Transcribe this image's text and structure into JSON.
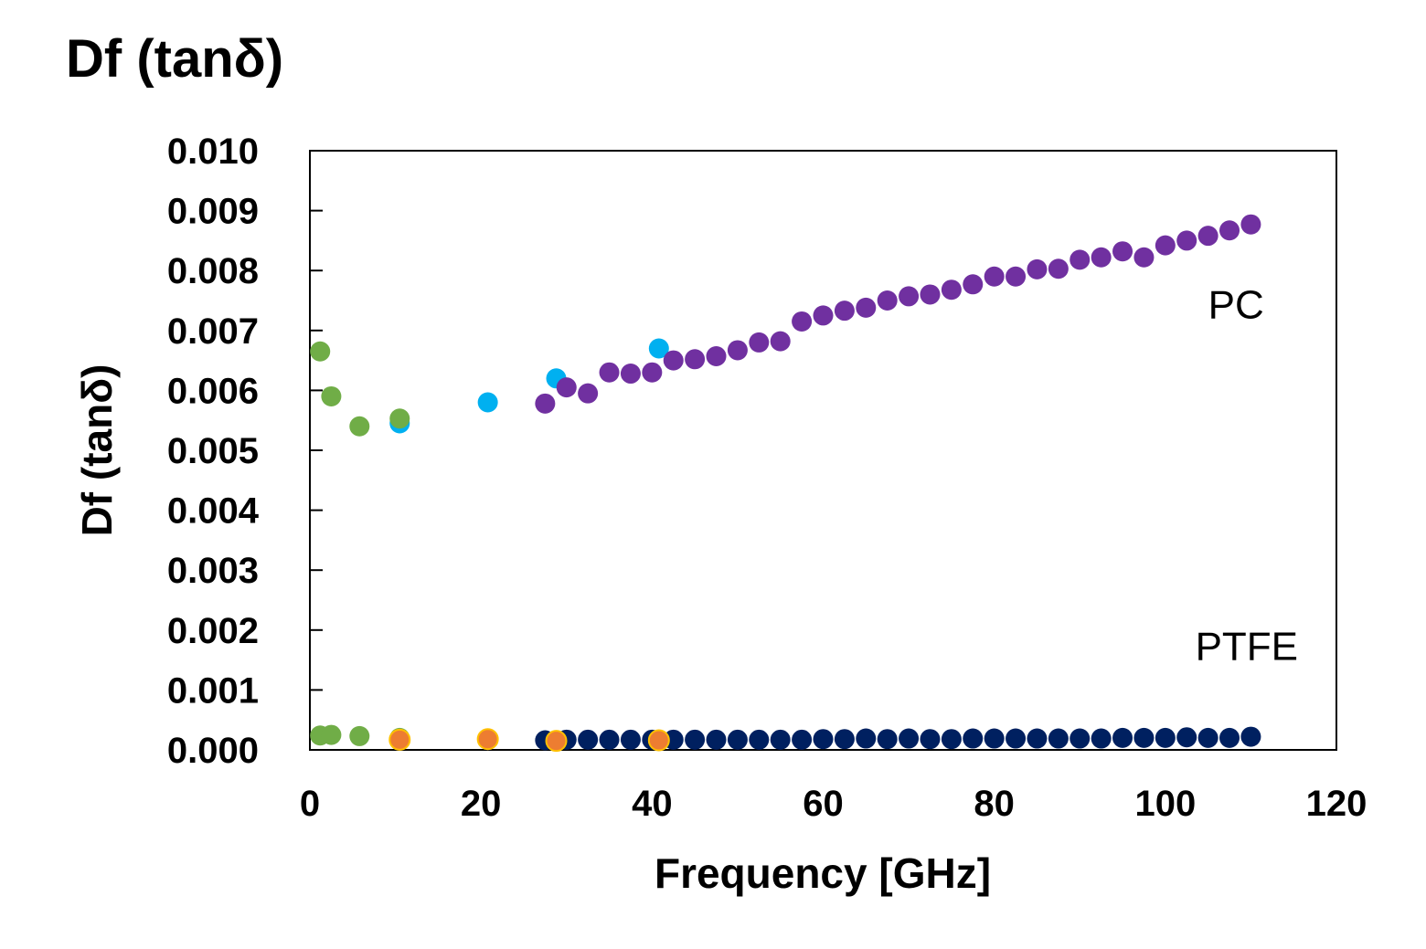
{
  "figure_title": "Df (tanδ)",
  "chart_data": {
    "type": "scatter",
    "title": "",
    "xlabel": "Frequency [GHz]",
    "ylabel": "Df (tanδ)",
    "xlim": [
      0,
      120
    ],
    "ylim": [
      0,
      0.01
    ],
    "xticks": [
      "0",
      "20",
      "40",
      "60",
      "80",
      "100",
      "120"
    ],
    "yticks": [
      "0.000",
      "0.001",
      "0.002",
      "0.003",
      "0.004",
      "0.005",
      "0.006",
      "0.007",
      "0.008",
      "0.009",
      "0.010"
    ],
    "grid": false,
    "annotations": [
      {
        "text": "PC",
        "x": 105,
        "y": 0.0072
      },
      {
        "text": "PTFE",
        "x": 103.5,
        "y": 0.0015
      }
    ],
    "series": [
      {
        "name": "PC (cyan)",
        "color": "#00b0f0",
        "x": [
          10.5,
          20.8,
          28.8,
          40.8
        ],
        "y": [
          0.00545,
          0.0058,
          0.0062,
          0.0067
        ]
      },
      {
        "name": "PC (green)",
        "color": "#70ad47",
        "x": [
          1.2,
          2.5,
          5.8,
          10.5
        ],
        "y": [
          0.00665,
          0.0059,
          0.0054,
          0.00553
        ]
      },
      {
        "name": "PC (purple)",
        "color": "#7030a0",
        "x": [
          27.5,
          30,
          32.5,
          35,
          37.5,
          40,
          42.5,
          45,
          47.5,
          50,
          52.5,
          55,
          57.5,
          60,
          62.5,
          65,
          67.5,
          70,
          72.5,
          75,
          77.5,
          80,
          82.5,
          85,
          87.5,
          90,
          92.5,
          95,
          97.5,
          100,
          102.5,
          105,
          107.5,
          110
        ],
        "y": [
          0.00578,
          0.00605,
          0.00595,
          0.0063,
          0.00628,
          0.0063,
          0.0065,
          0.00652,
          0.00657,
          0.00667,
          0.0068,
          0.00682,
          0.00715,
          0.00725,
          0.00733,
          0.00738,
          0.0075,
          0.00757,
          0.0076,
          0.00768,
          0.00777,
          0.0079,
          0.0079,
          0.00802,
          0.00803,
          0.00818,
          0.00822,
          0.00832,
          0.00822,
          0.00842,
          0.0085,
          0.00858,
          0.00867,
          0.00877
        ]
      },
      {
        "name": "PTFE (navy)",
        "color": "#002060",
        "x": [
          27.5,
          30,
          32.5,
          35,
          37.5,
          40,
          42.5,
          45,
          47.5,
          50,
          52.5,
          55,
          57.5,
          60,
          62.5,
          65,
          67.5,
          70,
          72.5,
          75,
          77.5,
          80,
          82.5,
          85,
          87.5,
          90,
          92.5,
          95,
          97.5,
          100,
          102.5,
          105,
          107.5,
          110
        ],
        "y": [
          0.00016,
          0.00017,
          0.00017,
          0.00017,
          0.00017,
          0.00017,
          0.00017,
          0.00017,
          0.00017,
          0.00017,
          0.00017,
          0.00017,
          0.00017,
          0.00018,
          0.00018,
          0.00019,
          0.00018,
          0.00019,
          0.00018,
          0.00018,
          0.00019,
          0.00019,
          0.00019,
          0.00019,
          0.00019,
          0.00019,
          0.00019,
          0.0002,
          0.0002,
          0.0002,
          0.00021,
          0.0002,
          0.0002,
          0.00022
        ]
      },
      {
        "name": "PTFE (green)",
        "color": "#70ad47",
        "x": [
          1.2,
          2.5,
          5.8,
          10.5
        ],
        "y": [
          0.00024,
          0.00025,
          0.00023,
          0.0002
        ]
      },
      {
        "name": "PTFE (orange)",
        "color": "#ed7d31",
        "edge": "#ffc000",
        "x": [
          10.5,
          20.8,
          28.8,
          40.8
        ],
        "y": [
          0.00017,
          0.00018,
          0.00015,
          0.00016
        ]
      }
    ]
  }
}
